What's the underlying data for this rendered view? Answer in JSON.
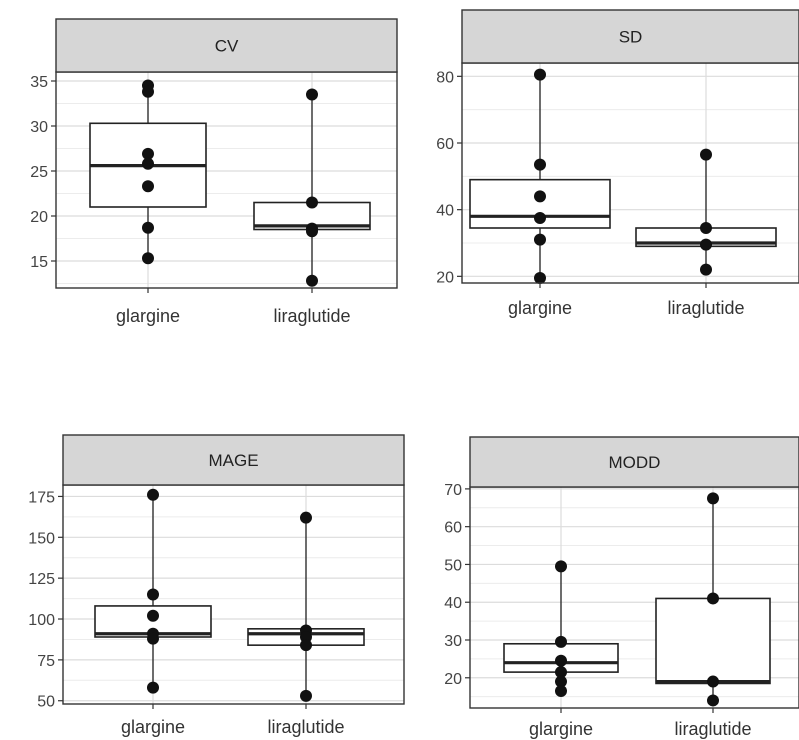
{
  "chart_data": [
    {
      "type": "boxplot",
      "title": "CV",
      "categories": [
        "glargine",
        "liraglutide"
      ],
      "yticks": [
        15,
        20,
        25,
        30,
        35
      ],
      "ylim": [
        12,
        36
      ],
      "boxes": [
        {
          "category": "glargine",
          "whisker_low": 15.3,
          "q1": 21.0,
          "median": 25.6,
          "q3": 30.3,
          "whisker_high": 34.5
        },
        {
          "category": "liraglutide",
          "whisker_low": 12.8,
          "q1": 18.5,
          "median": 18.9,
          "q3": 21.5,
          "whisker_high": 33.5
        }
      ],
      "points": [
        {
          "category": "glargine",
          "values": [
            34.5,
            33.8,
            26.9,
            25.8,
            23.3,
            18.7,
            15.3
          ]
        },
        {
          "category": "liraglutide",
          "values": [
            33.5,
            21.5,
            18.6,
            18.3,
            12.8
          ]
        }
      ],
      "grid": true
    },
    {
      "type": "boxplot",
      "title": "SD",
      "categories": [
        "glargine",
        "liraglutide"
      ],
      "yticks": [
        20,
        40,
        60,
        80
      ],
      "ylim": [
        18,
        84
      ],
      "boxes": [
        {
          "category": "glargine",
          "whisker_low": 19.5,
          "q1": 34.5,
          "median": 38.0,
          "q3": 49.0,
          "whisker_high": 80.5
        },
        {
          "category": "liraglutide",
          "whisker_low": 22.0,
          "q1": 29.0,
          "median": 30.0,
          "q3": 34.5,
          "whisker_high": 56.5
        }
      ],
      "points": [
        {
          "category": "glargine",
          "values": [
            80.5,
            53.5,
            44.0,
            37.5,
            31.0,
            19.5
          ]
        },
        {
          "category": "liraglutide",
          "values": [
            56.5,
            34.5,
            29.5,
            22.0
          ]
        }
      ],
      "grid": true
    },
    {
      "type": "boxplot",
      "title": "MAGE",
      "categories": [
        "glargine",
        "liraglutide"
      ],
      "yticks": [
        50,
        75,
        100,
        125,
        150,
        175
      ],
      "ylim": [
        48,
        182
      ],
      "boxes": [
        {
          "category": "glargine",
          "whisker_low": 58,
          "q1": 89,
          "median": 91,
          "q3": 108,
          "whisker_high": 176
        },
        {
          "category": "liraglutide",
          "whisker_low": 53,
          "q1": 84,
          "median": 91,
          "q3": 94,
          "whisker_high": 162
        }
      ],
      "points": [
        {
          "category": "glargine",
          "values": [
            176,
            115,
            102,
            91,
            88,
            58
          ]
        },
        {
          "category": "liraglutide",
          "values": [
            162,
            93,
            89,
            84,
            53
          ]
        }
      ],
      "grid": true
    },
    {
      "type": "boxplot",
      "title": "MODD",
      "categories": [
        "glargine",
        "liraglutide"
      ],
      "yticks": [
        20,
        30,
        40,
        50,
        60,
        70
      ],
      "ylim": [
        12,
        70.5
      ],
      "boxes": [
        {
          "category": "glargine",
          "whisker_low": 16.5,
          "q1": 21.5,
          "median": 24.0,
          "q3": 29.0,
          "whisker_high": 49.5
        },
        {
          "category": "liraglutide",
          "whisker_low": 14.0,
          "q1": 18.5,
          "median": 19.0,
          "q3": 41.0,
          "whisker_high": 67.5
        }
      ],
      "points": [
        {
          "category": "glargine",
          "values": [
            49.5,
            29.5,
            24.5,
            21.5,
            19.0,
            16.5
          ]
        },
        {
          "category": "liraglutide",
          "values": [
            67.5,
            41.0,
            19.0,
            14.0
          ]
        }
      ],
      "grid": true
    }
  ]
}
